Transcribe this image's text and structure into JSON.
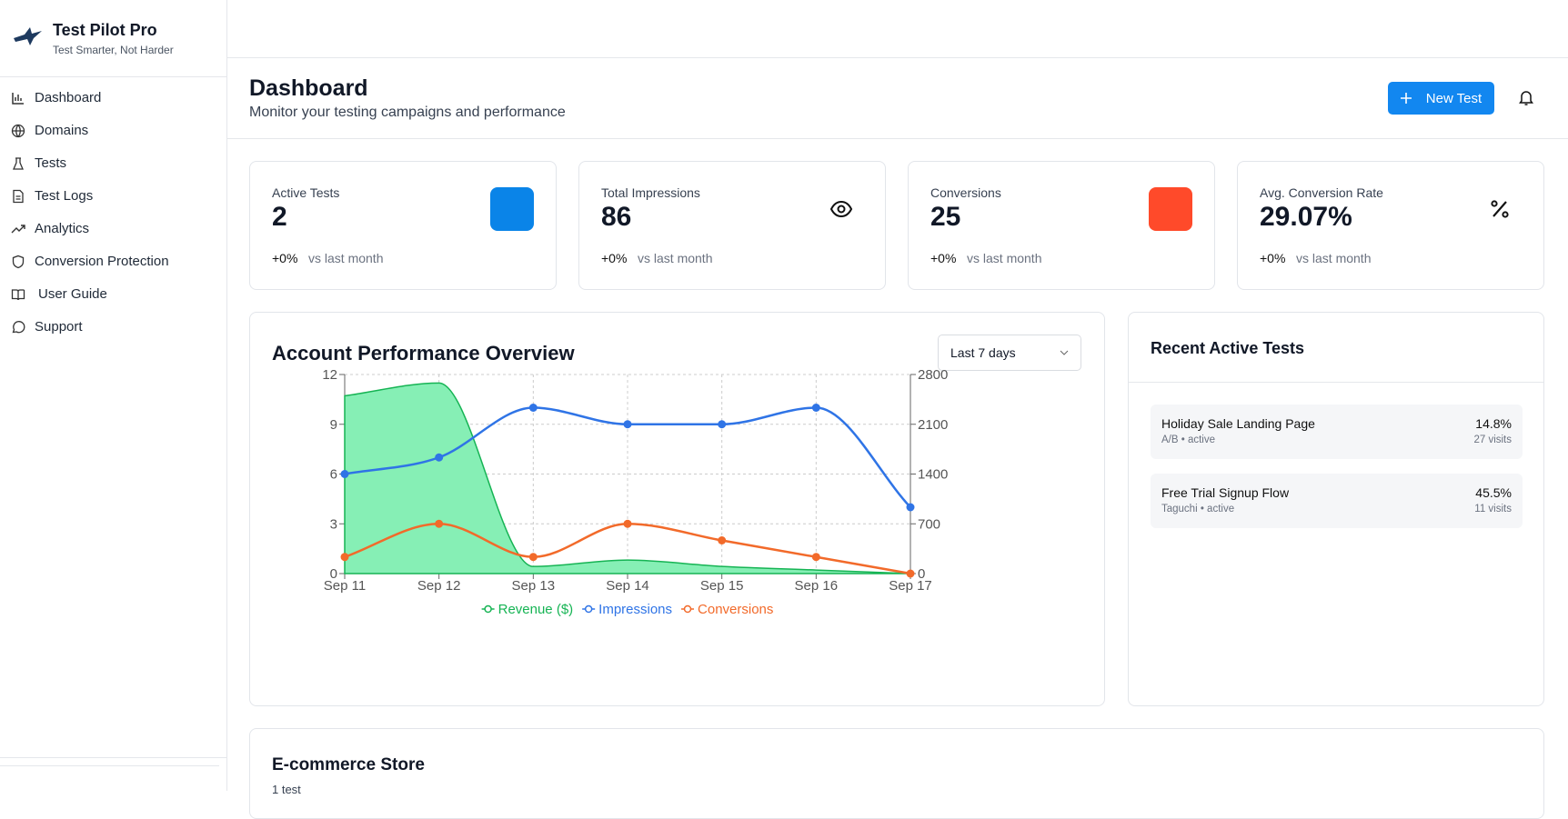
{
  "brand": {
    "name": "Test Pilot Pro",
    "tagline": "Test Smarter, Not Harder"
  },
  "nav": [
    "Dashboard",
    "Domains",
    "Tests",
    "Test Logs",
    "Analytics",
    "Conversion Protection",
    "User Guide",
    "Support"
  ],
  "header": {
    "title": "Dashboard",
    "subtitle": "Monitor your testing campaigns and performance",
    "button": "New Test"
  },
  "stats": [
    {
      "label": "Active Tests",
      "value": "2",
      "change": "+0%",
      "note": "vs last month"
    },
    {
      "label": "Total Impressions",
      "value": "86",
      "change": "+0%",
      "note": "vs last month"
    },
    {
      "label": "Conversions",
      "value": "25",
      "change": "+0%",
      "note": "vs last month"
    },
    {
      "label": "Avg. Conversion Rate",
      "value": "29.07%",
      "change": "+0%",
      "note": "vs last month"
    }
  ],
  "chart_filter": "Last 7 days",
  "chart_data": {
    "type": "line",
    "title": "Account Performance Overview",
    "categories": [
      "Sep 11",
      "Sep 12",
      "Sep 13",
      "Sep 14",
      "Sep 15",
      "Sep 16",
      "Sep 17"
    ],
    "series": [
      {
        "name": "Revenue ($)",
        "color": "#16b454",
        "fill": "#86efb5",
        "area": true,
        "axis": "y2",
        "values": [
          2500,
          2680,
          100,
          190,
          100,
          50,
          0
        ]
      },
      {
        "name": "Impressions",
        "color": "#2f74e6",
        "values": [
          6,
          7,
          10,
          9,
          9,
          10,
          4
        ]
      },
      {
        "name": "Conversions",
        "color": "#f26a2a",
        "values": [
          1,
          3,
          1,
          3,
          2,
          1,
          0
        ]
      }
    ],
    "ylim": [
      0,
      12
    ],
    "yticks": [
      0,
      3,
      6,
      9,
      12
    ],
    "y2lim": [
      0,
      2800
    ],
    "y2ticks": [
      0,
      700,
      1400,
      2100,
      2800
    ],
    "grid": true,
    "legend": "bottom"
  },
  "recent_tests": {
    "title": "Recent Active Tests",
    "items": [
      {
        "name": "Holiday Sale Landing Page",
        "meta": "A/B • active",
        "rate": "14.8%",
        "visits": "27 visits"
      },
      {
        "name": "Free Trial Signup Flow",
        "meta": "Taguchi • active",
        "rate": "45.5%",
        "visits": "11 visits"
      }
    ]
  },
  "store": {
    "title": "E-commerce Store",
    "subtitle": "1 test"
  }
}
